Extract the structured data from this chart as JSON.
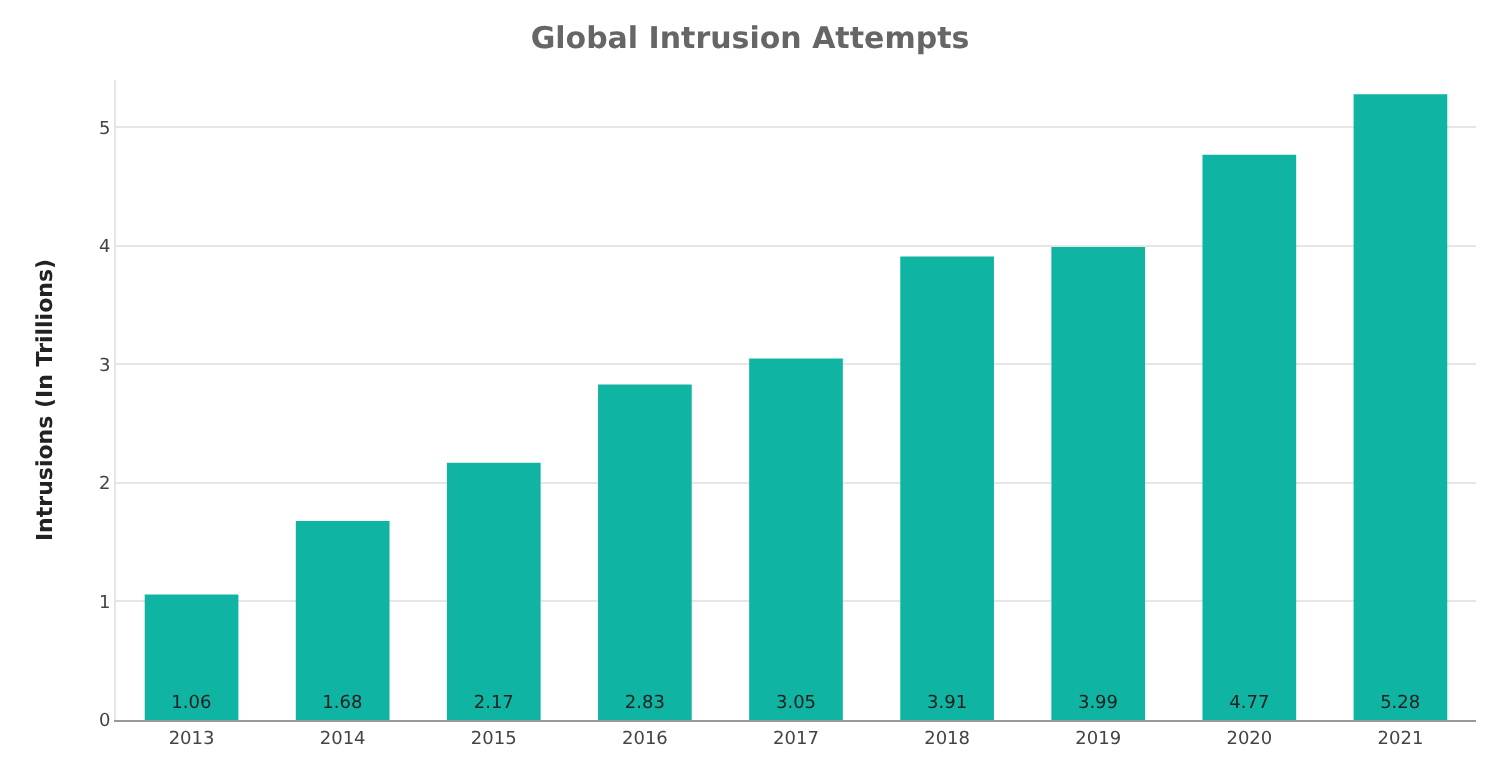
{
  "chart_data": {
    "type": "bar",
    "title": "Global Intrusion Attempts",
    "ylabel": "Intrusions (In Trillions)",
    "categories": [
      "2013",
      "2014",
      "2015",
      "2016",
      "2017",
      "2018",
      "2019",
      "2020",
      "2021"
    ],
    "values": [
      1.06,
      1.68,
      2.17,
      2.83,
      3.05,
      3.91,
      3.99,
      4.77,
      5.28
    ],
    "color": "#0fb5a2",
    "ylim": [
      0,
      5.4
    ],
    "yticks": [
      0,
      1,
      2,
      3,
      4,
      5
    ],
    "grid": "y",
    "data_labels": true
  }
}
